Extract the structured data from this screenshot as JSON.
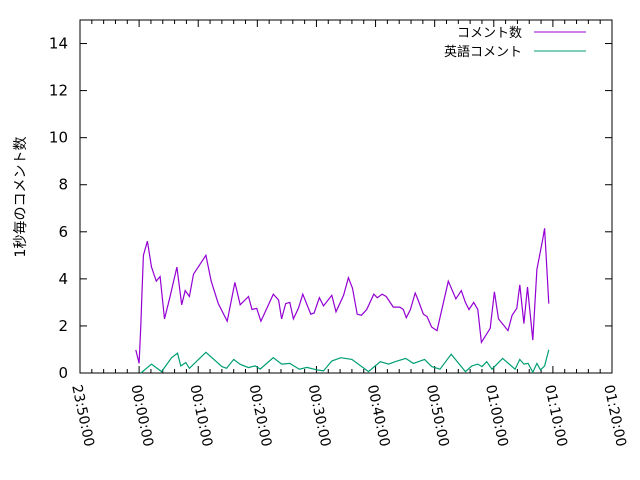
{
  "chart_data": {
    "type": "line",
    "title": "",
    "xlabel": "",
    "ylabel": "1秒毎のコメント数",
    "xlim": [
      "23:50:00",
      "01:20:00"
    ],
    "ylim": [
      0,
      15
    ],
    "x_ticks": [
      "23:50:00",
      "00:00:00",
      "00:10:00",
      "00:20:00",
      "00:30:00",
      "00:40:00",
      "00:50:00",
      "01:00:00",
      "01:10:00",
      "01:20:00"
    ],
    "y_ticks": [
      "0",
      "2",
      "4",
      "6",
      "8",
      "10",
      "12",
      "14"
    ],
    "grid": false,
    "legend_position": "top-right",
    "series": [
      {
        "name": "コメント数",
        "color": "#9400d3",
        "x": [
          "23:59:26",
          "00:00:00",
          "00:00:18",
          "00:00:27",
          "00:00:44",
          "00:01:24",
          "00:02:06",
          "00:02:54",
          "00:03:33",
          "00:04:18",
          "00:05:12",
          "00:06:24",
          "00:07:12",
          "00:07:48",
          "00:08:30",
          "00:09:12",
          "00:11:18",
          "00:12:12",
          "00:13:24",
          "00:14:54",
          "00:16:12",
          "00:17:06",
          "00:18:30",
          "00:19:06",
          "00:19:54",
          "00:20:36",
          "00:22:42",
          "00:23:36",
          "00:24:06",
          "00:24:48",
          "00:25:30",
          "00:26:06",
          "00:26:57",
          "00:27:42",
          "00:29:03",
          "00:29:36",
          "00:30:30",
          "00:31:12",
          "00:32:36",
          "00:33:18",
          "00:34:36",
          "00:35:24",
          "00:36:06",
          "00:36:54",
          "00:37:36",
          "00:38:30",
          "00:39:42",
          "00:40:18",
          "00:41:06",
          "00:41:48",
          "00:43:00",
          "00:44:06",
          "00:44:42",
          "00:45:12",
          "00:45:54",
          "00:46:42",
          "00:47:12",
          "00:48:06",
          "00:48:42",
          "00:49:30",
          "00:50:24",
          "00:52:18",
          "00:53:36",
          "00:54:30",
          "00:55:12",
          "00:55:48",
          "00:56:36",
          "00:57:18",
          "00:57:54",
          "00:59:24",
          "01:00:06",
          "01:00:48",
          "01:02:24",
          "01:03:06",
          "01:03:54",
          "01:04:24",
          "01:05:06",
          "01:05:42",
          "01:06:36",
          "01:07:18",
          "01:08:18",
          "01:08:36",
          "01:09:18"
        ],
        "y": [
          0.98,
          0.41,
          2.1,
          3.2,
          5.0,
          5.6,
          4.5,
          3.9,
          4.1,
          2.3,
          3.2,
          4.5,
          2.9,
          3.5,
          3.25,
          4.2,
          5.0,
          3.9,
          2.95,
          2.2,
          3.85,
          2.9,
          3.25,
          2.7,
          2.75,
          2.2,
          3.35,
          3.1,
          2.3,
          2.95,
          3.0,
          2.3,
          2.75,
          3.35,
          2.5,
          2.55,
          3.2,
          2.85,
          3.3,
          2.6,
          3.3,
          4.05,
          3.6,
          2.5,
          2.45,
          2.7,
          3.35,
          3.2,
          3.35,
          3.25,
          2.8,
          2.8,
          2.7,
          2.35,
          2.7,
          3.4,
          3.1,
          2.5,
          2.4,
          1.95,
          1.8,
          3.9,
          3.15,
          3.5,
          3.0,
          2.7,
          3.0,
          2.7,
          1.3,
          1.9,
          3.45,
          2.3,
          1.8,
          2.45,
          2.75,
          3.75,
          2.1,
          3.65,
          1.4,
          4.4,
          5.7,
          6.15,
          2.95
        ]
      },
      {
        "name": "英語コメント",
        "color": "#009e73",
        "x": [
          "00:00:18",
          "00:02:06",
          "00:03:48",
          "00:05:30",
          "00:06:30",
          "00:07:03",
          "00:07:54",
          "00:08:30",
          "00:11:18",
          "00:14:00",
          "00:14:48",
          "00:16:00",
          "00:17:06",
          "00:18:30",
          "00:19:36",
          "00:20:30",
          "00:22:42",
          "00:24:06",
          "00:25:30",
          "00:27:06",
          "00:28:24",
          "00:30:06",
          "00:31:12",
          "00:32:36",
          "00:34:06",
          "00:36:00",
          "00:38:48",
          "00:40:48",
          "00:42:12",
          "00:43:18",
          "00:45:06",
          "00:46:24",
          "00:48:18",
          "00:49:30",
          "00:50:54",
          "00:52:48",
          "00:55:12",
          "00:56:18",
          "00:57:18",
          "00:58:00",
          "00:58:48",
          "00:59:42",
          "01:01:30",
          "01:03:36",
          "01:04:24",
          "01:05:06",
          "01:05:48",
          "01:06:36",
          "01:07:18",
          "01:07:54",
          "01:08:36",
          "01:09:18"
        ],
        "y": [
          0,
          0.38,
          0.06,
          0.65,
          0.84,
          0.3,
          0.44,
          0.2,
          0.88,
          0.27,
          0.2,
          0.58,
          0.37,
          0.23,
          0.3,
          0.17,
          0.65,
          0.38,
          0.41,
          0.16,
          0.24,
          0.13,
          0.09,
          0.51,
          0.65,
          0.58,
          0.06,
          0.48,
          0.38,
          0.48,
          0.62,
          0.41,
          0.58,
          0.27,
          0.16,
          0.8,
          0.06,
          0.3,
          0.38,
          0.27,
          0.48,
          0.16,
          0.62,
          0.16,
          0.58,
          0.38,
          0.41,
          0.03,
          0.41,
          0.13,
          0.3,
          0.98
        ]
      }
    ]
  }
}
